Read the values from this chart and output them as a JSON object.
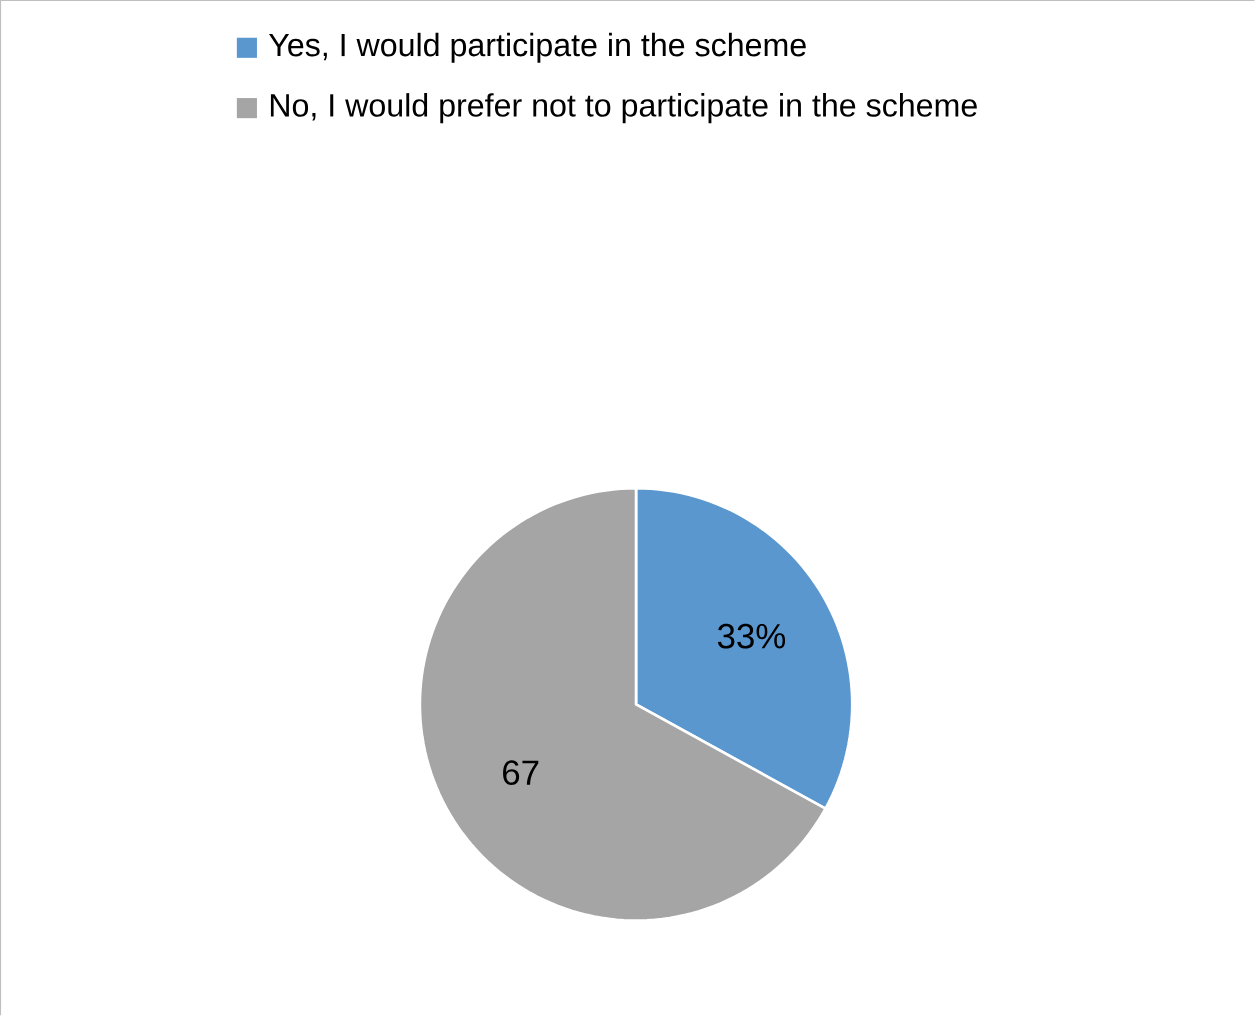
{
  "chart_data": {
    "type": "pie",
    "categories": [
      "Yes, I would participate in the scheme",
      "No, I would prefer not to participate in the scheme"
    ],
    "values": [
      33,
      67
    ],
    "colors": [
      "#5b97cf",
      "#a5a5a5"
    ],
    "value_labels": [
      "33%",
      "67"
    ],
    "legend": "top"
  }
}
